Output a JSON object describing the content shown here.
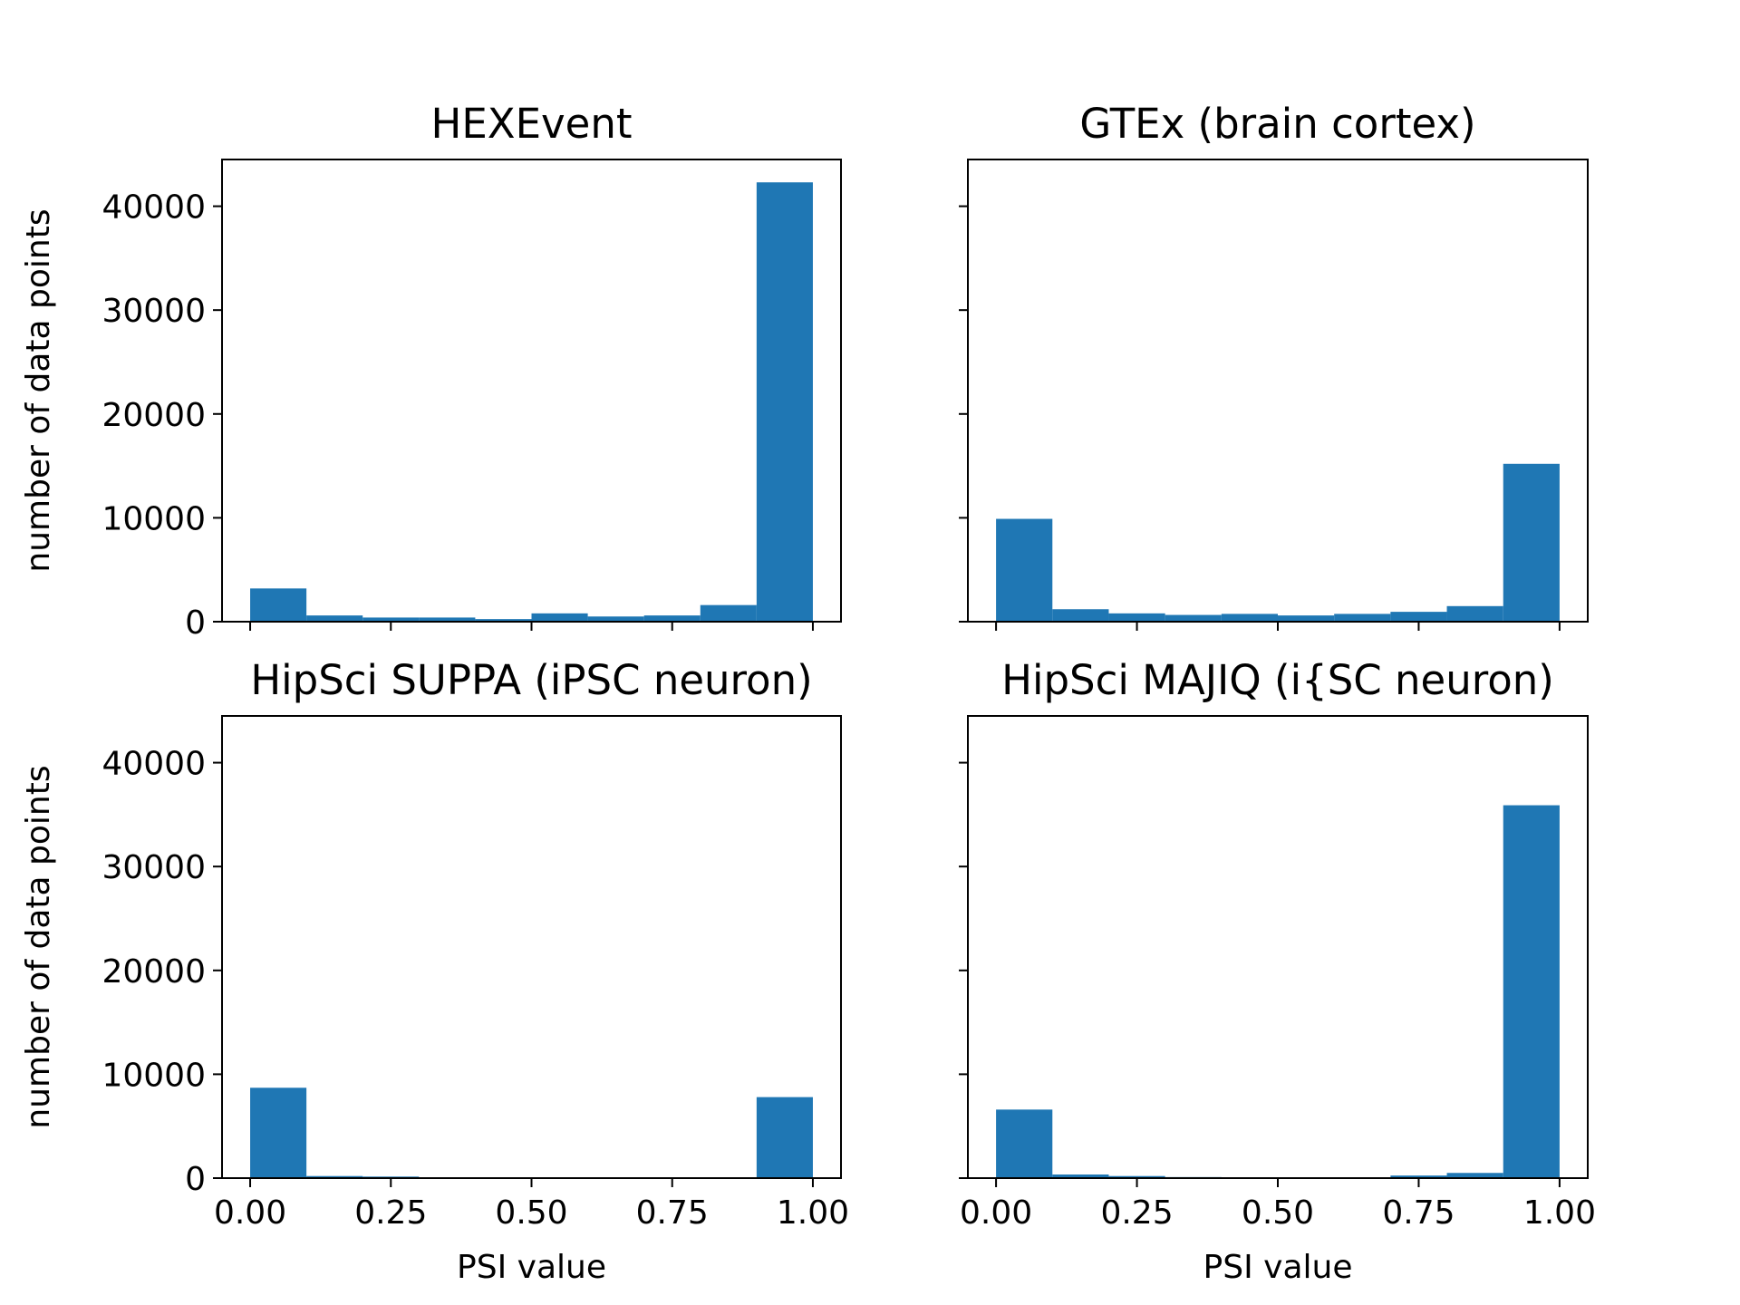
{
  "figure": {
    "bar_color": "#1f77b4",
    "axis_color": "#000000",
    "background": "#ffffff"
  },
  "chart_data": [
    {
      "type": "bar",
      "title": "HEXEvent",
      "xlabel": "",
      "ylabel": "number of data points",
      "bin_edges": [
        0.0,
        0.1,
        0.2,
        0.3,
        0.4,
        0.5,
        0.6,
        0.7,
        0.8,
        0.9,
        1.0
      ],
      "values": [
        3200,
        600,
        400,
        400,
        250,
        800,
        500,
        600,
        1600,
        42300
      ],
      "xlim": [
        -0.05,
        1.05
      ],
      "ylim": [
        0,
        44500
      ],
      "xticks": [
        0.0,
        0.25,
        0.5,
        0.75,
        1.0
      ],
      "xtick_labels": [],
      "yticks": [
        0,
        10000,
        20000,
        30000,
        40000
      ],
      "ytick_labels": [
        "0",
        "10000",
        "20000",
        "30000",
        "40000"
      ],
      "grid": false
    },
    {
      "type": "bar",
      "title": "GTEx (brain cortex)",
      "xlabel": "",
      "ylabel": "",
      "bin_edges": [
        0.0,
        0.1,
        0.2,
        0.3,
        0.4,
        0.5,
        0.6,
        0.7,
        0.8,
        0.9,
        1.0
      ],
      "values": [
        9900,
        1200,
        800,
        650,
        750,
        600,
        750,
        950,
        1500,
        15200
      ],
      "xlim": [
        -0.05,
        1.05
      ],
      "ylim": [
        0,
        44500
      ],
      "xticks": [
        0.0,
        0.25,
        0.5,
        0.75,
        1.0
      ],
      "xtick_labels": [],
      "yticks": [
        0,
        10000,
        20000,
        30000,
        40000
      ],
      "ytick_labels": [],
      "grid": false
    },
    {
      "type": "bar",
      "title": "HipSci SUPPA (iPSC neuron)",
      "xlabel": "PSI value",
      "ylabel": "number of data points",
      "bin_edges": [
        0.0,
        0.1,
        0.2,
        0.3,
        0.4,
        0.5,
        0.6,
        0.7,
        0.8,
        0.9,
        1.0
      ],
      "values": [
        8700,
        200,
        150,
        80,
        60,
        50,
        50,
        60,
        80,
        7800
      ],
      "xlim": [
        -0.05,
        1.05
      ],
      "ylim": [
        0,
        44500
      ],
      "xticks": [
        0.0,
        0.25,
        0.5,
        0.75,
        1.0
      ],
      "xtick_labels": [
        "0.00",
        "0.25",
        "0.50",
        "0.75",
        "1.00"
      ],
      "yticks": [
        0,
        10000,
        20000,
        30000,
        40000
      ],
      "ytick_labels": [
        "0",
        "10000",
        "20000",
        "30000",
        "40000"
      ],
      "grid": false
    },
    {
      "type": "bar",
      "title": "HipSci MAJIQ (i{SC neuron)",
      "xlabel": "PSI value",
      "ylabel": "",
      "bin_edges": [
        0.0,
        0.1,
        0.2,
        0.3,
        0.4,
        0.5,
        0.6,
        0.7,
        0.8,
        0.9,
        1.0
      ],
      "values": [
        6600,
        350,
        200,
        100,
        80,
        70,
        80,
        250,
        500,
        35900
      ],
      "xlim": [
        -0.05,
        1.05
      ],
      "ylim": [
        0,
        44500
      ],
      "xticks": [
        0.0,
        0.25,
        0.5,
        0.75,
        1.0
      ],
      "xtick_labels": [
        "0.00",
        "0.25",
        "0.50",
        "0.75",
        "1.00"
      ],
      "yticks": [
        0,
        10000,
        20000,
        30000,
        40000
      ],
      "ytick_labels": [],
      "grid": false
    }
  ]
}
